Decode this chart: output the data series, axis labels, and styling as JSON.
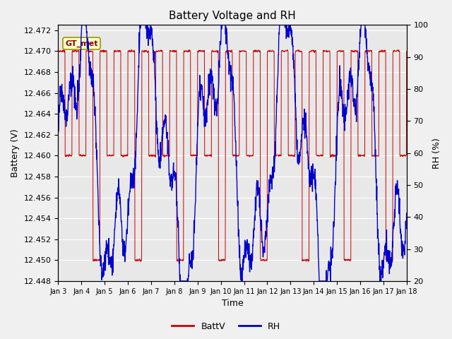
{
  "title": "Battery Voltage and RH",
  "xlabel": "Time",
  "ylabel_left": "Battery (V)",
  "ylabel_right": "RH (%)",
  "annotation_text": "GT_met",
  "x_tick_labels": [
    "Jan 3",
    "Jan 4",
    "Jan 5",
    "Jan 6",
    "Jan 7",
    "Jan 8",
    "Jan 9",
    "Jan 10",
    "Jan 11",
    "Jan 12",
    "Jan 13",
    "Jan 14",
    "Jan 15",
    "Jan 16",
    "Jan 17",
    "Jan 18"
  ],
  "ylim_left": [
    12.448,
    12.4725
  ],
  "ylim_right": [
    20,
    100
  ],
  "yticks_left": [
    12.448,
    12.45,
    12.452,
    12.454,
    12.456,
    12.458,
    12.46,
    12.462,
    12.464,
    12.466,
    12.468,
    12.47,
    12.472
  ],
  "yticks_right": [
    20,
    30,
    40,
    50,
    60,
    70,
    80,
    90,
    100
  ],
  "fig_bg_color": "#f0f0f0",
  "plot_bg_color": "#e8e8e8",
  "grid_color": "#ffffff",
  "batt_color": "#cc0000",
  "rh_color": "#0000cc",
  "legend_items": [
    "BattV",
    "RH"
  ],
  "title_fontsize": 11,
  "label_fontsize": 9,
  "tick_fontsize": 8,
  "annotation_facecolor": "#ffffcc",
  "annotation_edgecolor": "#999900",
  "annotation_textcolor": "#880000"
}
